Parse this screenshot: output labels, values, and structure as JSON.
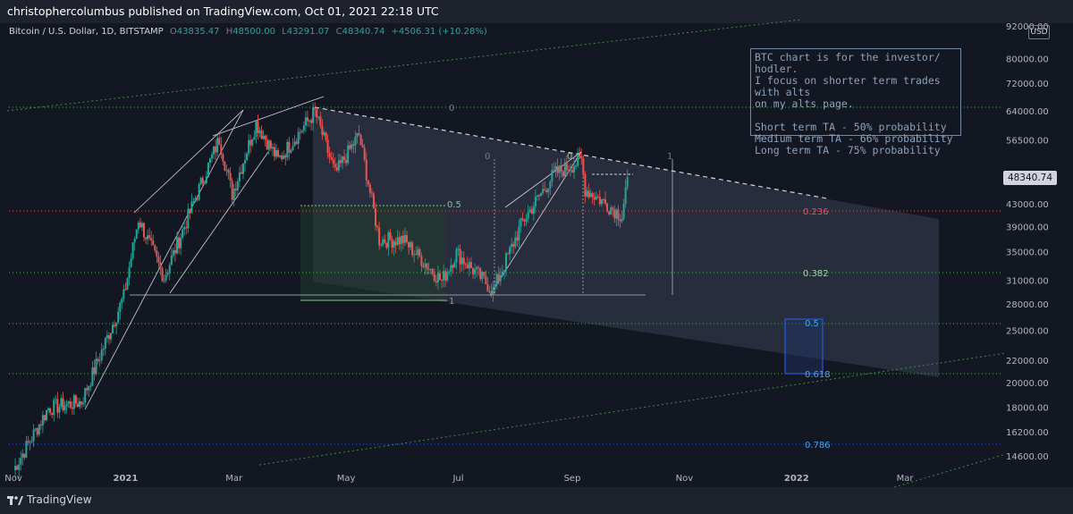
{
  "header": {
    "publish_line": "christophercolumbus published on TradingView.com, Oct 01, 2021 22:18 UTC"
  },
  "symbol": {
    "name": "Bitcoin / U.S. Dollar, 1D, BITSTAMP",
    "open_label": "O",
    "open": "43835.47",
    "high_label": "H",
    "high": "48500.00",
    "low_label": "L",
    "low": "43291.07",
    "close_label": "C",
    "close": "48340.74",
    "change": "+4506.31 (+10.28%)"
  },
  "currency_button": "USD",
  "last_price_tag": "48340.74",
  "note": {
    "lines": [
      "BTC chart is for the investor/ hodler.",
      "I focus on shorter term trades with alts",
      "on my alts page.",
      "",
      "Short term TA - 50% probability",
      "Medium term TA - 66% probability",
      "Long term TA - 75% probability"
    ]
  },
  "footer": {
    "brand": "TradingView"
  },
  "colors": {
    "up": "#26a69a",
    "down": "#ef5350",
    "background": "#131722",
    "accent_blue": "#2962ff"
  },
  "fib_labels": {
    "right": [
      {
        "text": "0.236",
        "color": "#ef5350"
      },
      {
        "text": "0.382",
        "color": "#a5d6a7"
      },
      {
        "text": "0.5",
        "color": "#42a5f5"
      },
      {
        "text": "0.618",
        "color": "#42a5f5"
      },
      {
        "text": "0.786",
        "color": "#42a5f5"
      }
    ],
    "small": [
      "0",
      "0",
      "0.5",
      "0.5",
      "1",
      "1"
    ]
  },
  "chart_data": {
    "type": "candlestick",
    "symbol": "Bitcoin / U.S. Dollar",
    "timeframe": "1D",
    "exchange": "BITSTAMP",
    "y_scale": "log",
    "ylim": [
      14000,
      92000
    ],
    "y_ticks": [
      92000,
      80000,
      72000,
      64000,
      56500,
      48000,
      43000,
      39000,
      35000,
      31000,
      28000,
      25000,
      22000,
      20000,
      18000,
      16200,
      14600
    ],
    "y_tick_labels": [
      "92000.00",
      "80000.00",
      "72000.00",
      "64000.00",
      "56500.00",
      "48000.00",
      "43000.00",
      "39000.00",
      "35000.00",
      "31000.00",
      "28000.00",
      "25000.00",
      "22000.00",
      "20000.00",
      "18000.00",
      "16200.00",
      "14600.00"
    ],
    "x_tick_labels": [
      "Nov",
      "2021",
      "Mar",
      "May",
      "Jul",
      "Sep",
      "Nov",
      "2022",
      "Mar"
    ],
    "x_tick_dates": [
      "2020-11-01",
      "2021-01-01",
      "2021-03-01",
      "2021-05-01",
      "2021-07-01",
      "2021-09-01",
      "2021-11-01",
      "2022-01-01",
      "2022-03-01"
    ],
    "series_keypoints": [
      {
        "date": "2020-11-01",
        "close": 13800
      },
      {
        "date": "2020-11-20",
        "close": 18000
      },
      {
        "date": "2020-12-08",
        "close": 18500
      },
      {
        "date": "2020-12-31",
        "close": 29000
      },
      {
        "date": "2021-01-08",
        "close": 40500
      },
      {
        "date": "2021-01-22",
        "close": 31500
      },
      {
        "date": "2021-02-10",
        "close": 46000
      },
      {
        "date": "2021-02-21",
        "close": 57000
      },
      {
        "date": "2021-02-28",
        "close": 45000
      },
      {
        "date": "2021-03-13",
        "close": 61000
      },
      {
        "date": "2021-03-25",
        "close": 52000
      },
      {
        "date": "2021-04-14",
        "close": 64000
      },
      {
        "date": "2021-04-25",
        "close": 49000
      },
      {
        "date": "2021-05-08",
        "close": 58000
      },
      {
        "date": "2021-05-19",
        "close": 37000
      },
      {
        "date": "2021-06-01",
        "close": 37000
      },
      {
        "date": "2021-06-22",
        "close": 31000
      },
      {
        "date": "2021-06-30",
        "close": 35000
      },
      {
        "date": "2021-07-20",
        "close": 29800
      },
      {
        "date": "2021-08-05",
        "close": 40000
      },
      {
        "date": "2021-08-22",
        "close": 49000
      },
      {
        "date": "2021-09-06",
        "close": 52000
      },
      {
        "date": "2021-09-08",
        "close": 46000
      },
      {
        "date": "2021-09-20",
        "close": 43000
      },
      {
        "date": "2021-09-28",
        "close": 41000
      },
      {
        "date": "2021-10-01",
        "close": 48340.74
      }
    ],
    "last": {
      "date": "2021-10-01",
      "open": 43835.47,
      "high": 48500.0,
      "low": 43291.07,
      "close": 48340.74
    }
  }
}
